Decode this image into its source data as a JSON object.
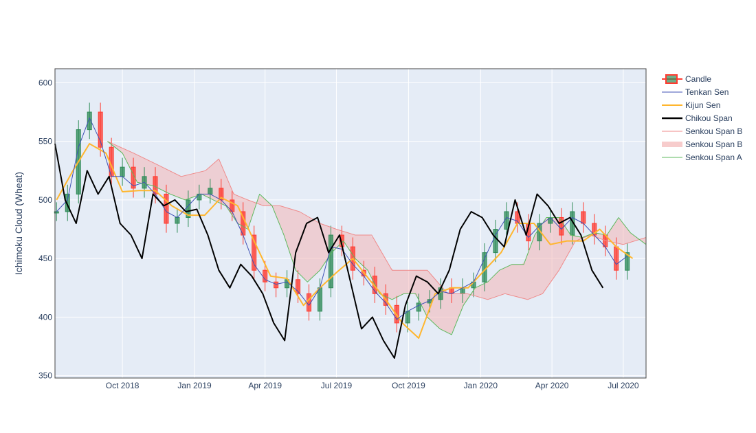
{
  "chart_data": {
    "type": "line",
    "ylabel": "Ichimoku Cloud (Wheat)",
    "xlabel": "",
    "ylim": [
      348,
      612
    ],
    "xrange": [
      "2018-07-07",
      "2020-07-30"
    ],
    "yticks": [
      350,
      400,
      450,
      500,
      550,
      600
    ],
    "xticks": [
      {
        "date": "2018-10-01",
        "label": "Oct 2018"
      },
      {
        "date": "2019-01-01",
        "label": "Jan 2019"
      },
      {
        "date": "2019-04-01",
        "label": "Apr 2019"
      },
      {
        "date": "2019-07-01",
        "label": "Jul 2019"
      },
      {
        "date": "2019-10-01",
        "label": "Oct 2019"
      },
      {
        "date": "2020-01-01",
        "label": "Jan 2020"
      },
      {
        "date": "2020-04-01",
        "label": "Apr 2020"
      },
      {
        "date": "2020-07-01",
        "label": "Jul 2020"
      }
    ],
    "grid": true,
    "legend_position": "right",
    "colors": {
      "background": "#e5ecf6",
      "increasing": "#2e8b57",
      "decreasing": "#ff3b30",
      "tenkan": "#3f51b5",
      "kijun": "#ffb62e",
      "chikou": "#000000",
      "senkou_b": "#ef8a8a",
      "senkou_a": "#5cb85c",
      "cloud_fill": "#f4b6b6"
    },
    "legend": [
      {
        "key": "candle",
        "label": "Candle"
      },
      {
        "key": "tenkan",
        "label": "Tenkan Sen"
      },
      {
        "key": "kijun",
        "label": "Kijun Sen"
      },
      {
        "key": "chikou",
        "label": "Chikou Span"
      },
      {
        "key": "senkou_b",
        "label": "Senkou Span B"
      },
      {
        "key": "cloud",
        "label": "Senkou Span B"
      },
      {
        "key": "senkou_a",
        "label": "Senkou Span A"
      }
    ],
    "series": [
      {
        "name": "Candle",
        "key": "close",
        "x": [
          "2018-07-09",
          "2018-07-23",
          "2018-08-06",
          "2018-08-20",
          "2018-09-03",
          "2018-09-17",
          "2018-10-01",
          "2018-10-15",
          "2018-10-29",
          "2018-11-12",
          "2018-11-26",
          "2018-12-10",
          "2018-12-24",
          "2019-01-07",
          "2019-01-21",
          "2019-02-04",
          "2019-02-18",
          "2019-03-04",
          "2019-03-18",
          "2019-04-01",
          "2019-04-15",
          "2019-04-29",
          "2019-05-13",
          "2019-05-27",
          "2019-06-10",
          "2019-06-24",
          "2019-07-08",
          "2019-07-22",
          "2019-08-05",
          "2019-08-19",
          "2019-09-02",
          "2019-09-16",
          "2019-09-30",
          "2019-10-14",
          "2019-10-28",
          "2019-11-11",
          "2019-11-25",
          "2019-12-09",
          "2019-12-23",
          "2020-01-06",
          "2020-01-20",
          "2020-02-03",
          "2020-02-17",
          "2020-03-02",
          "2020-03-16",
          "2020-03-30",
          "2020-04-13",
          "2020-04-27",
          "2020-05-11",
          "2020-05-25",
          "2020-06-08",
          "2020-06-22",
          "2020-07-06"
        ],
        "values": [
          490,
          505,
          560,
          575,
          545,
          520,
          528,
          510,
          520,
          505,
          480,
          485,
          500,
          505,
          510,
          500,
          490,
          470,
          440,
          430,
          425,
          432,
          420,
          405,
          425,
          470,
          460,
          440,
          435,
          420,
          410,
          395,
          405,
          412,
          415,
          425,
          420,
          425,
          430,
          455,
          475,
          490,
          480,
          465,
          480,
          485,
          470,
          490,
          480,
          470,
          460,
          440,
          455
        ]
      },
      {
        "name": "Tenkan Sen",
        "key": "tenkan",
        "x": [
          "2018-07-09",
          "2018-07-23",
          "2018-08-06",
          "2018-08-20",
          "2018-09-03",
          "2018-09-17",
          "2018-10-01",
          "2018-10-15",
          "2018-10-29",
          "2018-11-12",
          "2018-11-26",
          "2018-12-10",
          "2018-12-24",
          "2019-01-07",
          "2019-01-21",
          "2019-02-04",
          "2019-02-18",
          "2019-03-04",
          "2019-03-18",
          "2019-04-01",
          "2019-04-15",
          "2019-04-29",
          "2019-05-13",
          "2019-05-27",
          "2019-06-10",
          "2019-06-24",
          "2019-07-08",
          "2019-07-22",
          "2019-08-05",
          "2019-08-19",
          "2019-09-02",
          "2019-09-16",
          "2019-09-30",
          "2019-10-14",
          "2019-10-28",
          "2019-11-11",
          "2019-11-25",
          "2019-12-09",
          "2019-12-23",
          "2020-01-06",
          "2020-01-20",
          "2020-02-03",
          "2020-02-17",
          "2020-03-02",
          "2020-03-16",
          "2020-03-30",
          "2020-04-13",
          "2020-04-27",
          "2020-05-11",
          "2020-05-25",
          "2020-06-08",
          "2020-06-22",
          "2020-07-06"
        ],
        "values": [
          490,
          500,
          545,
          570,
          550,
          520,
          520,
          512,
          515,
          505,
          490,
          485,
          495,
          505,
          505,
          500,
          490,
          470,
          445,
          432,
          428,
          430,
          422,
          410,
          425,
          460,
          458,
          445,
          435,
          422,
          412,
          398,
          405,
          410,
          414,
          422,
          420,
          425,
          430,
          450,
          470,
          485,
          482,
          468,
          478,
          485,
          475,
          485,
          480,
          470,
          460,
          445,
          452
        ]
      },
      {
        "name": "Kijun Sen",
        "key": "kijun",
        "x": [
          "2018-07-09",
          "2018-07-30",
          "2018-08-20",
          "2018-09-10",
          "2018-10-01",
          "2018-10-22",
          "2018-11-12",
          "2018-12-03",
          "2018-12-24",
          "2019-01-14",
          "2019-02-04",
          "2019-02-25",
          "2019-03-18",
          "2019-04-08",
          "2019-04-29",
          "2019-05-20",
          "2019-06-10",
          "2019-07-01",
          "2019-07-22",
          "2019-08-12",
          "2019-09-02",
          "2019-09-23",
          "2019-10-14",
          "2019-11-04",
          "2019-11-25",
          "2019-12-16",
          "2020-01-06",
          "2020-01-27",
          "2020-02-17",
          "2020-03-09",
          "2020-03-30",
          "2020-04-20",
          "2020-05-11",
          "2020-06-01",
          "2020-06-22",
          "2020-07-13"
        ],
        "values": [
          500,
          525,
          548,
          540,
          507,
          508,
          508,
          495,
          487,
          487,
          502,
          495,
          465,
          435,
          433,
          410,
          425,
          438,
          450,
          432,
          415,
          395,
          382,
          420,
          425,
          425,
          440,
          455,
          480,
          480,
          462,
          465,
          465,
          475,
          460,
          450
        ]
      },
      {
        "name": "Chikou Span",
        "key": "chikou",
        "x": [
          "2018-07-07",
          "2018-07-20",
          "2018-08-03",
          "2018-08-17",
          "2018-08-31",
          "2018-09-14",
          "2018-09-28",
          "2018-10-12",
          "2018-10-26",
          "2018-11-09",
          "2018-11-23",
          "2018-12-07",
          "2018-12-21",
          "2019-01-04",
          "2019-01-18",
          "2019-02-01",
          "2019-02-15",
          "2019-03-01",
          "2019-03-15",
          "2019-03-29",
          "2019-04-12",
          "2019-04-26",
          "2019-05-10",
          "2019-05-24",
          "2019-06-07",
          "2019-06-21",
          "2019-07-05",
          "2019-07-19",
          "2019-08-02",
          "2019-08-16",
          "2019-08-30",
          "2019-09-13",
          "2019-09-27",
          "2019-10-11",
          "2019-10-25",
          "2019-11-08",
          "2019-11-22",
          "2019-12-06",
          "2019-12-20",
          "2020-01-03",
          "2020-01-17",
          "2020-01-31",
          "2020-02-14",
          "2020-02-28",
          "2020-03-13",
          "2020-03-27",
          "2020-04-10",
          "2020-04-24",
          "2020-05-08",
          "2020-05-22",
          "2020-06-05"
        ],
        "values": [
          548,
          500,
          480,
          525,
          505,
          520,
          480,
          470,
          450,
          505,
          495,
          500,
          490,
          492,
          470,
          440,
          425,
          445,
          435,
          420,
          395,
          380,
          455,
          480,
          485,
          455,
          470,
          430,
          390,
          400,
          380,
          365,
          410,
          435,
          430,
          420,
          440,
          475,
          490,
          485,
          470,
          460,
          500,
          470,
          505,
          495,
          480,
          485,
          470,
          440,
          425
        ]
      },
      {
        "name": "Senkou Span B",
        "key": "senkou_b",
        "x": [
          "2018-09-12",
          "2018-10-15",
          "2018-11-15",
          "2018-12-15",
          "2019-01-15",
          "2019-02-01",
          "2019-02-20",
          "2019-03-10",
          "2019-03-30",
          "2019-04-20",
          "2019-05-15",
          "2019-06-10",
          "2019-07-01",
          "2019-07-25",
          "2019-08-15",
          "2019-09-10",
          "2019-10-01",
          "2019-10-25",
          "2019-11-20",
          "2019-12-15",
          "2020-01-10",
          "2020-02-01",
          "2020-03-01",
          "2020-03-20",
          "2020-04-10",
          "2020-05-01",
          "2020-05-20",
          "2020-06-10",
          "2020-07-01",
          "2020-07-30"
        ],
        "values": [
          550,
          540,
          530,
          520,
          525,
          535,
          505,
          500,
          495,
          495,
          490,
          480,
          475,
          470,
          470,
          440,
          440,
          440,
          420,
          420,
          415,
          420,
          415,
          420,
          440,
          465,
          470,
          465,
          462,
          468
        ]
      },
      {
        "name": "Senkou Span A",
        "key": "senkou_a",
        "x": [
          "2018-09-12",
          "2018-10-01",
          "2018-10-20",
          "2018-11-10",
          "2018-12-01",
          "2018-12-20",
          "2019-01-10",
          "2019-01-25",
          "2019-02-10",
          "2019-02-25",
          "2019-03-10",
          "2019-03-25",
          "2019-04-10",
          "2019-04-25",
          "2019-05-10",
          "2019-05-25",
          "2019-06-10",
          "2019-06-25",
          "2019-07-10",
          "2019-07-25",
          "2019-08-10",
          "2019-08-25",
          "2019-09-10",
          "2019-09-25",
          "2019-10-10",
          "2019-10-25",
          "2019-11-10",
          "2019-11-25",
          "2019-12-10",
          "2019-12-25",
          "2020-01-10",
          "2020-01-25",
          "2020-02-10",
          "2020-02-25",
          "2020-03-10",
          "2020-03-25",
          "2020-04-10",
          "2020-04-25",
          "2020-05-10",
          "2020-05-25",
          "2020-06-10",
          "2020-06-25",
          "2020-07-10",
          "2020-07-30"
        ],
        "values": [
          550,
          540,
          515,
          512,
          505,
          500,
          505,
          500,
          495,
          480,
          475,
          505,
          495,
          470,
          440,
          430,
          440,
          455,
          465,
          450,
          440,
          420,
          415,
          420,
          420,
          400,
          390,
          385,
          410,
          425,
          430,
          440,
          445,
          445,
          470,
          485,
          485,
          470,
          468,
          472,
          470,
          485,
          472,
          462
        ]
      }
    ]
  }
}
